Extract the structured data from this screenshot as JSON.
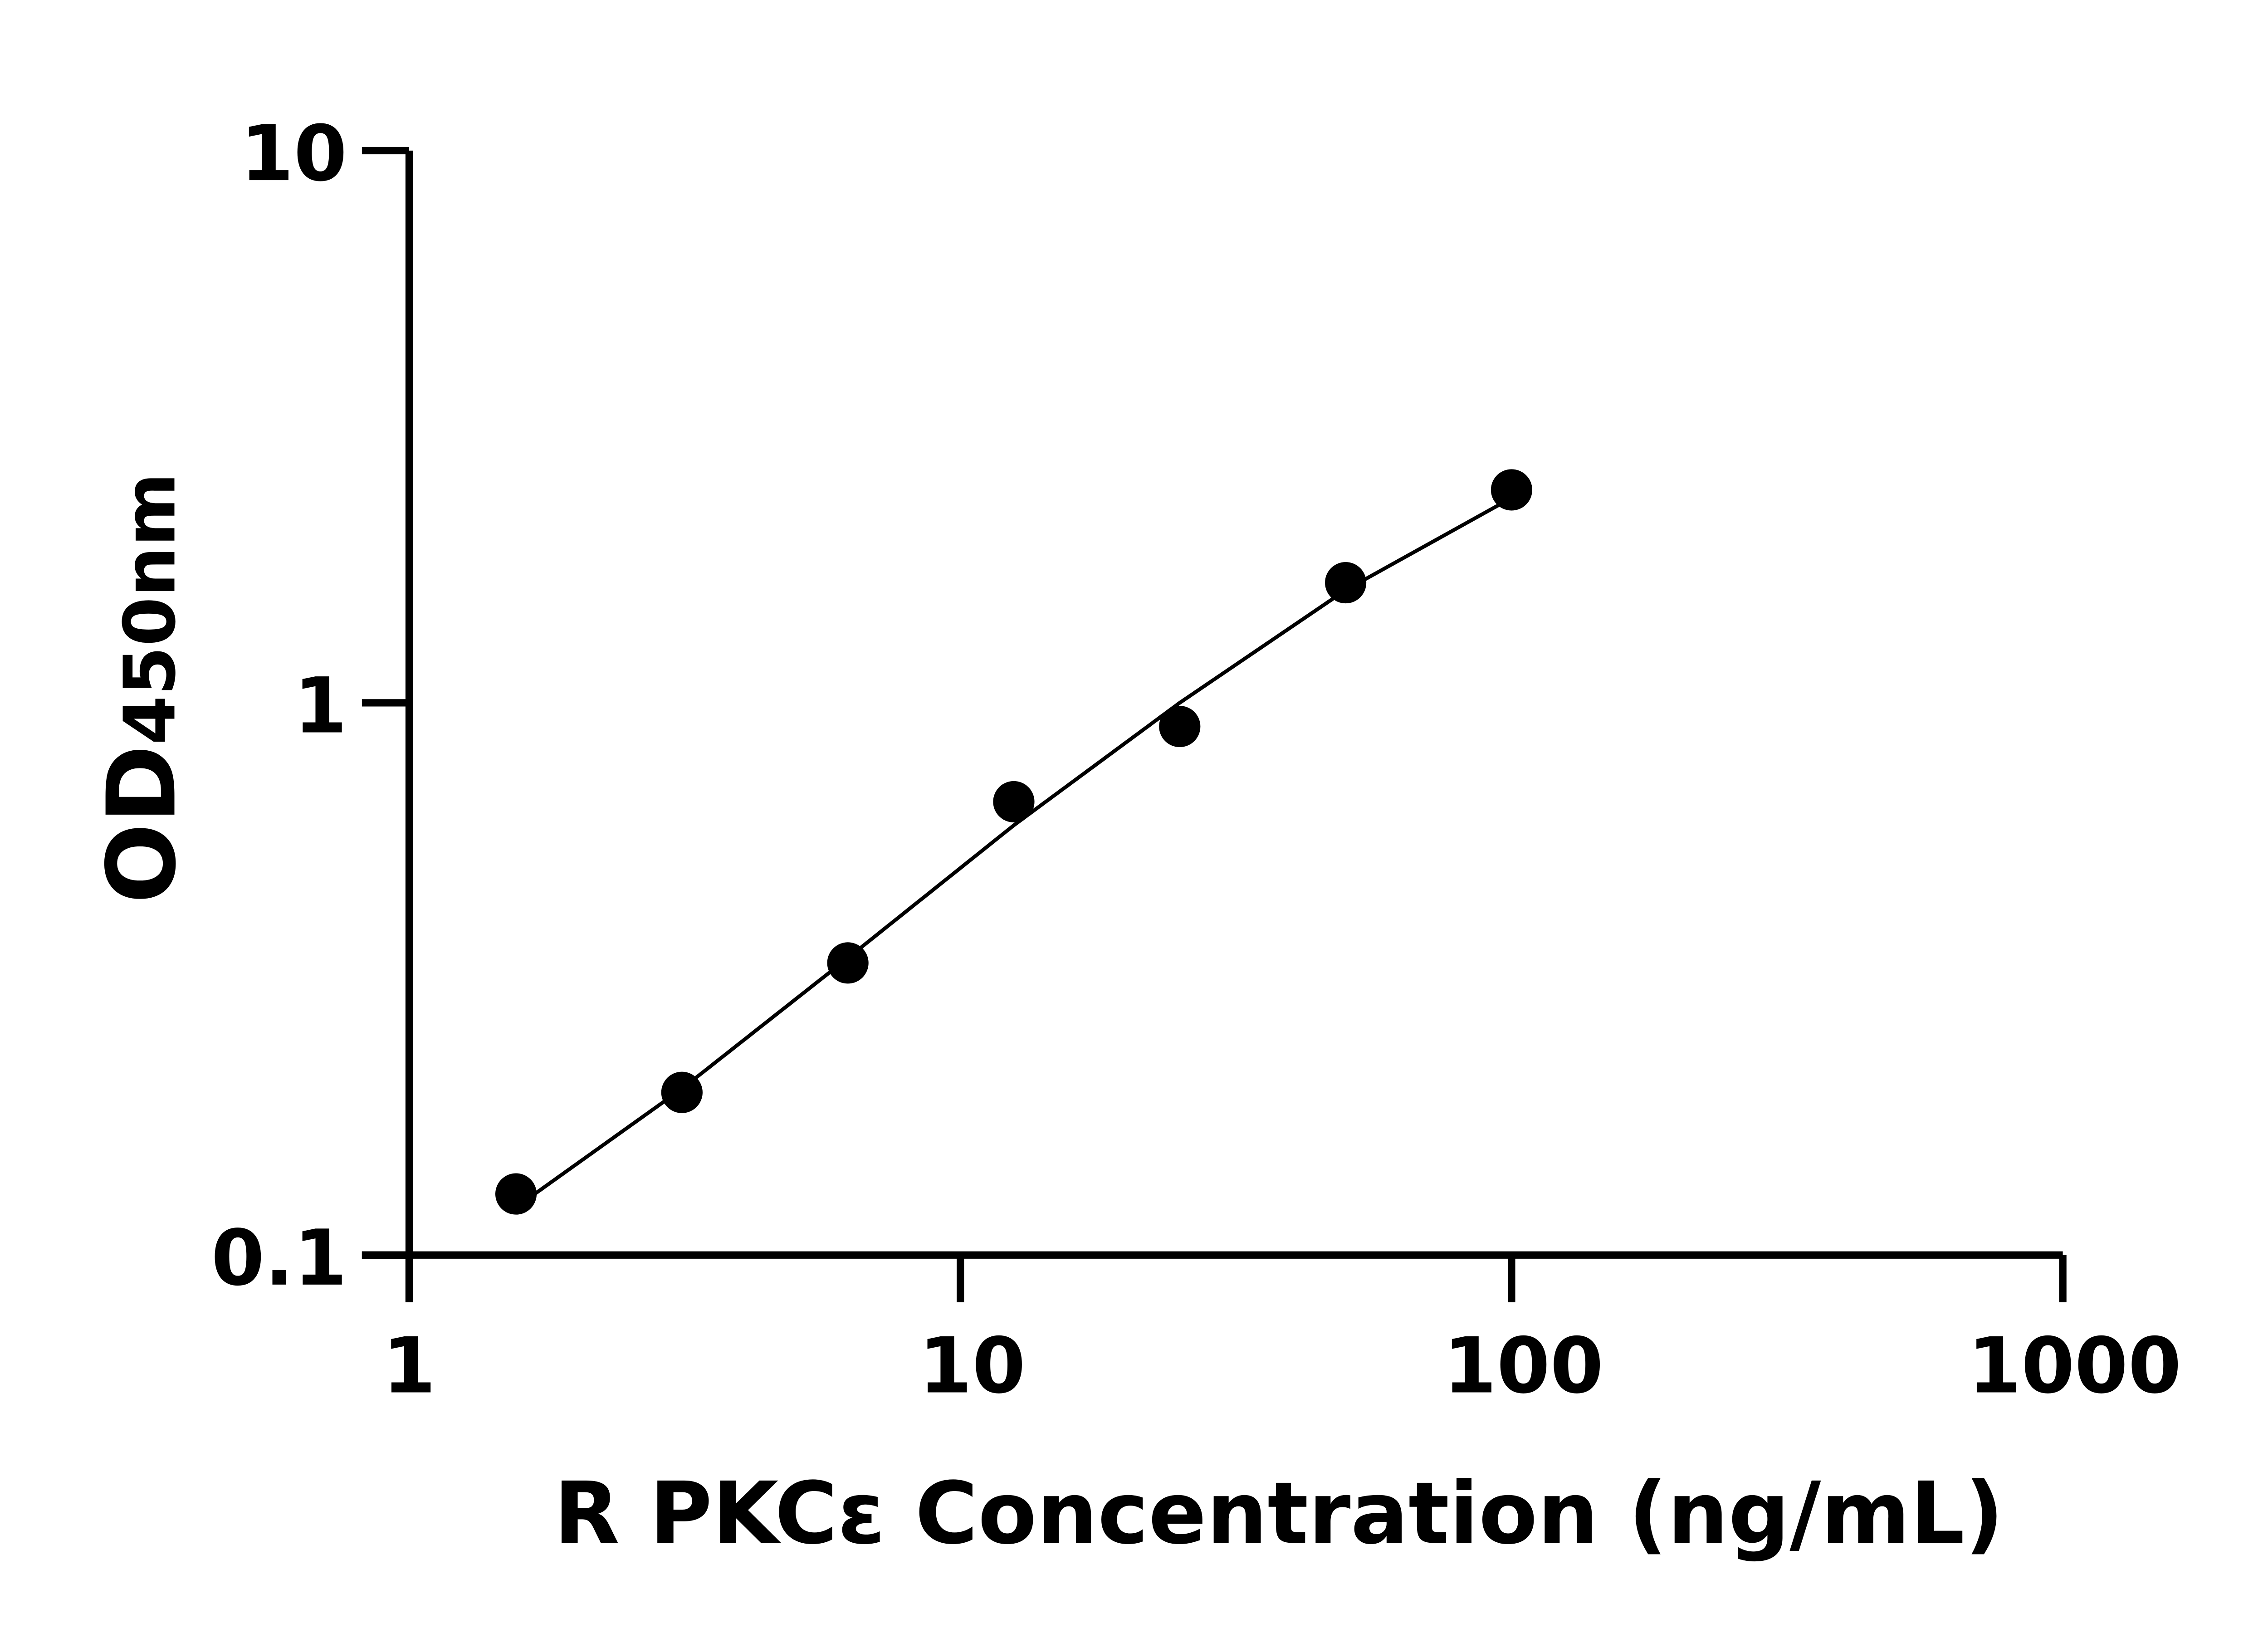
{
  "chart_data": {
    "type": "scatter",
    "xlabel": "R PKCε Concentration (ng/mL)",
    "ylabel_main": "OD",
    "ylabel_sub": "450nm",
    "x_scale": "log",
    "y_scale": "log",
    "xlim": [
      1,
      1000
    ],
    "ylim": [
      0.1,
      10
    ],
    "x_ticks": [
      "1",
      "10",
      "100",
      "1000"
    ],
    "y_ticks": [
      "0.1",
      "1",
      "10"
    ],
    "grid": false,
    "legend": "none",
    "color": "#000000",
    "points": {
      "x": [
        1.5625,
        3.125,
        6.25,
        12.5,
        25,
        50,
        100
      ],
      "y": [
        0.129,
        0.197,
        0.338,
        0.662,
        0.906,
        1.65,
        2.43
      ]
    },
    "fit_curve": {
      "x": [
        1.5625,
        3.125,
        6.25,
        12.5,
        25,
        50,
        100
      ],
      "y": [
        0.122,
        0.2,
        0.345,
        0.6,
        1.0,
        1.6,
        2.35
      ]
    }
  }
}
